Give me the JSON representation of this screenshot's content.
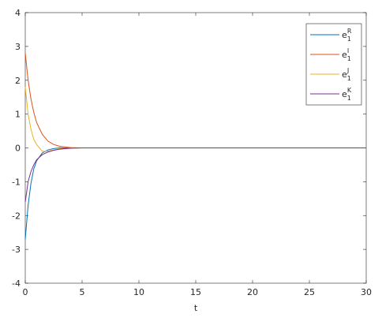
{
  "chart_data": {
    "type": "line",
    "xlabel": "t",
    "x": [
      0,
      0.25,
      0.5,
      0.75,
      1,
      1.5,
      2,
      2.5,
      3,
      4,
      5,
      10,
      20,
      30
    ],
    "series": [
      {
        "name": "e_1^R",
        "color": "#0072BD",
        "values": [
          -2.7,
          -1.7,
          -1.05,
          -0.62,
          -0.38,
          -0.15,
          -0.06,
          -0.02,
          0,
          0,
          0,
          0,
          0,
          0
        ]
      },
      {
        "name": "e_1^I",
        "color": "#D95319",
        "values": [
          2.8,
          2.0,
          1.45,
          1.05,
          0.75,
          0.4,
          0.2,
          0.1,
          0.05,
          0.01,
          0,
          0,
          0,
          0
        ]
      },
      {
        "name": "e_1^J",
        "color": "#EDB120",
        "values": [
          1.8,
          1.0,
          0.55,
          0.25,
          0.1,
          -0.1,
          -0.1,
          -0.06,
          -0.03,
          -0.01,
          0,
          0,
          0,
          0
        ]
      },
      {
        "name": "e_1^K",
        "color": "#7E2F8E",
        "values": [
          -1.6,
          -1.0,
          -0.7,
          -0.5,
          -0.35,
          -0.2,
          -0.12,
          -0.07,
          -0.04,
          -0.01,
          0,
          0,
          0,
          0
        ]
      }
    ],
    "xlim": [
      0,
      30
    ],
    "xticks": [
      0,
      5,
      10,
      15,
      20,
      25,
      30
    ],
    "ylim": [
      -4,
      4
    ],
    "yticks": [
      -4,
      -3,
      -2,
      -1,
      0,
      1,
      2,
      3,
      4
    ],
    "grid": false,
    "legend": "top-right"
  }
}
